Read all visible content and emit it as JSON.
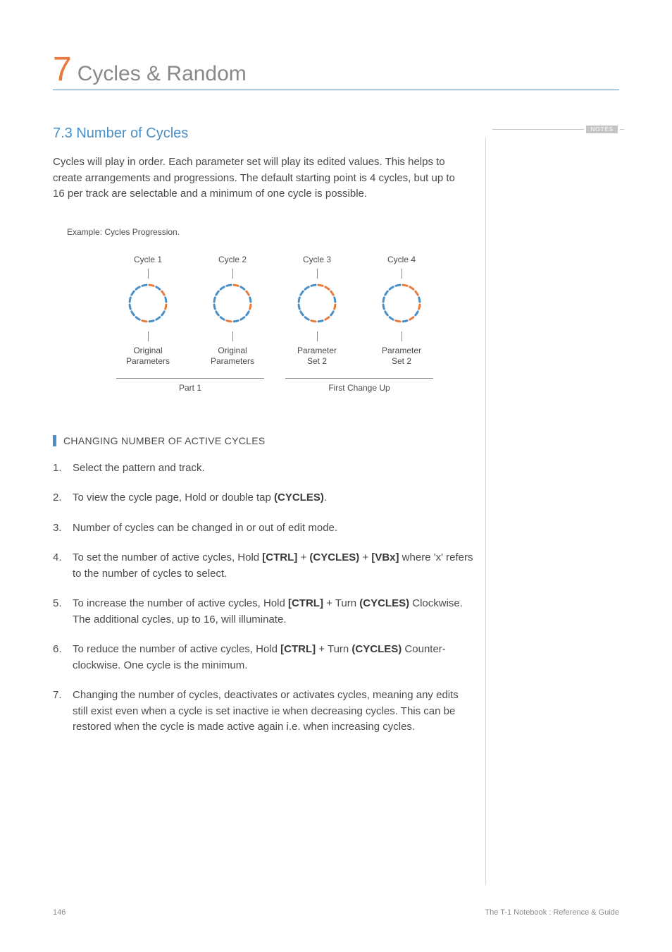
{
  "chapter": {
    "number": "7",
    "title": "Cycles & Random"
  },
  "section": {
    "number_title": "7.3 Number of Cycles"
  },
  "notes_tag": "NOTES",
  "intro": "Cycles will play in order. Each parameter set will play its edited values. This helps to create arrangements and progressions. The default starting point is 4 cycles, but up to 16 per track are selectable and a minimum of one cycle is possible.",
  "example_label": "Example: Cycles Progression.",
  "diagram": {
    "ring": {
      "segments": 16,
      "radius": 26,
      "dash_len": 6,
      "gap_deg": 9,
      "base_color": "#4a8fc7",
      "accent_color": "#e87b3c",
      "stroke_width": 3
    },
    "cycles": [
      {
        "label": "Cycle 1",
        "param": "Original\nParameters",
        "accents": [
          0,
          2,
          4,
          8
        ]
      },
      {
        "label": "Cycle 2",
        "param": "Original\nParameters",
        "accents": [
          0,
          2,
          4,
          8
        ]
      },
      {
        "label": "Cycle 3",
        "param": "Parameter\nSet 2",
        "accents": [
          0,
          1,
          2,
          4,
          6,
          8
        ]
      },
      {
        "label": "Cycle 4",
        "param": "Parameter\nSet 2",
        "accents": [
          0,
          1,
          2,
          4,
          6,
          8
        ]
      }
    ],
    "groups": [
      {
        "label": "Part 1",
        "span_cols": 2
      },
      {
        "label": "First Change Up",
        "span_cols": 2
      }
    ]
  },
  "subheading": "CHANGING NUMBER OF ACTIVE CYCLES",
  "steps": [
    {
      "n": "1.",
      "parts": [
        {
          "t": "Select the pattern and track."
        }
      ]
    },
    {
      "n": "2.",
      "parts": [
        {
          "t": "To view the cycle page, Hold or double tap "
        },
        {
          "b": "(CYCLES)"
        },
        {
          "t": "."
        }
      ]
    },
    {
      "n": "3.",
      "parts": [
        {
          "t": "Number of cycles can be changed in or out of edit mode."
        }
      ]
    },
    {
      "n": "4.",
      "parts": [
        {
          "t": "To set the number of active cycles, Hold "
        },
        {
          "b": "[CTRL]"
        },
        {
          "t": " + "
        },
        {
          "b": "(CYCLES)"
        },
        {
          "t": " + "
        },
        {
          "b": "[VBx]"
        },
        {
          "t": " where 'x' refers to the number of cycles to select."
        }
      ]
    },
    {
      "n": "5.",
      "parts": [
        {
          "t": "To increase the number of active cycles, Hold "
        },
        {
          "b": "[CTRL]"
        },
        {
          "t": " + Turn "
        },
        {
          "b": "(CYCLES)"
        },
        {
          "t": " Clockwise. The additional cycles, up to 16, will illuminate."
        }
      ]
    },
    {
      "n": "6.",
      "parts": [
        {
          "t": "To reduce the number of active cycles, Hold "
        },
        {
          "b": "[CTRL]"
        },
        {
          "t": " + Turn "
        },
        {
          "b": "(CYCLES)"
        },
        {
          "t": " Counter-clockwise. One cycle is the minimum."
        }
      ]
    },
    {
      "n": "7.",
      "parts": [
        {
          "t": "Changing the number of cycles, deactivates or activates cycles, meaning any edits still exist even when a cycle is set inactive ie when decreasing cycles. This can be restored when the cycle is made active again i.e. when increasing cycles."
        }
      ]
    }
  ],
  "footer": {
    "page": "146",
    "doc": "The T-1 Notebook : Reference & Guide"
  }
}
